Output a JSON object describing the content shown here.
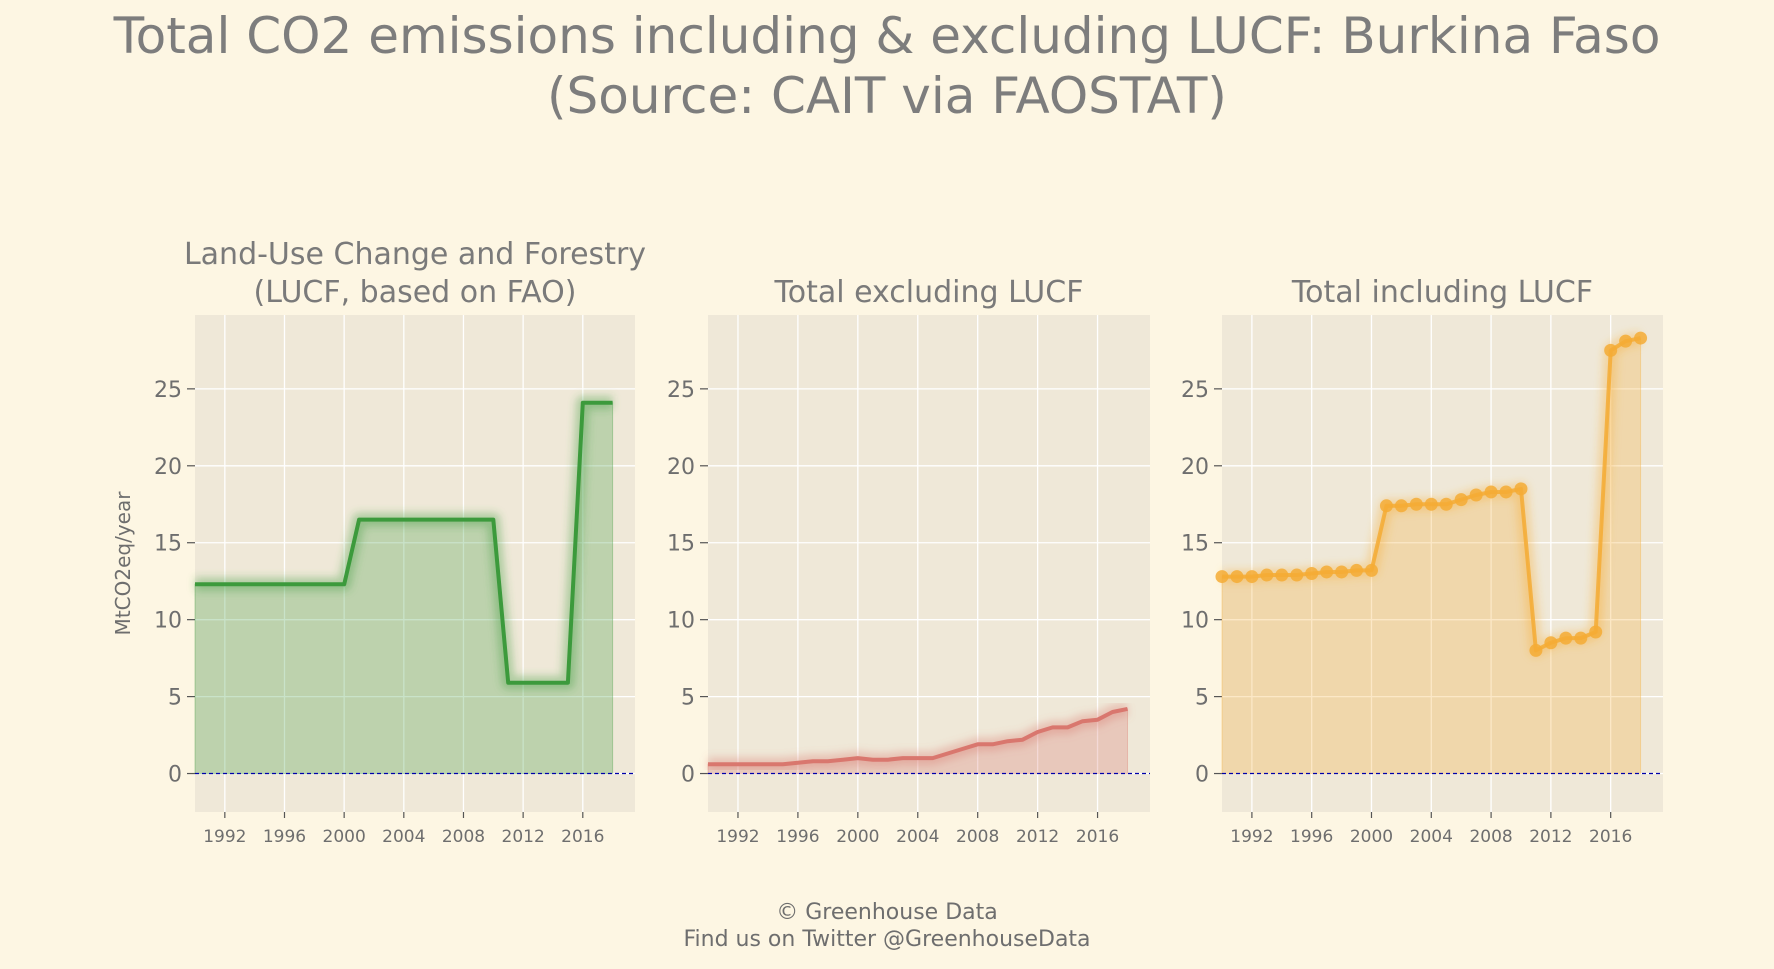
{
  "title": {
    "line1": "Total CO2 emissions including & excluding LUCF: Burkina Faso",
    "line2": "(Source: CAIT via FAOSTAT)"
  },
  "footer": {
    "line1": "© Greenhouse Data",
    "line2": "Find us on Twitter @GreenhouseData"
  },
  "colors": {
    "background": "#fdf6e3",
    "panel": "#efe8d8",
    "grid": "#ffffff",
    "lucf": "#3c9a3c",
    "excl": "#d9776e",
    "incl": "#f5ab35",
    "zero_line": "#0000aa"
  },
  "chart_data": [
    {
      "type": "area",
      "title": [
        "Land-Use Change and Forestry",
        "(LUCF, based on FAO)"
      ],
      "ylabel": "MtCO2eq/year",
      "xlim": [
        1990,
        2019.5
      ],
      "ylim": [
        -2.5,
        29.8
      ],
      "xticks": [
        1992,
        1996,
        2000,
        2004,
        2008,
        2012,
        2016
      ],
      "yticks": [
        0,
        5,
        10,
        15,
        20,
        25
      ],
      "grid": true,
      "markers": false,
      "color": "#3c9a3c",
      "x": [
        1990,
        1991,
        1992,
        1993,
        1994,
        1995,
        1996,
        1997,
        1998,
        1999,
        2000,
        2001,
        2002,
        2003,
        2004,
        2005,
        2006,
        2007,
        2008,
        2009,
        2010,
        2011,
        2012,
        2013,
        2014,
        2015,
        2016,
        2017,
        2018
      ],
      "y": [
        12.3,
        12.3,
        12.3,
        12.3,
        12.3,
        12.3,
        12.3,
        12.3,
        12.3,
        12.3,
        12.3,
        16.5,
        16.5,
        16.5,
        16.5,
        16.5,
        16.5,
        16.5,
        16.5,
        16.5,
        16.5,
        5.9,
        5.9,
        5.9,
        5.9,
        5.9,
        24.1,
        24.1,
        24.1
      ]
    },
    {
      "type": "area",
      "title": [
        "Total excluding LUCF"
      ],
      "ylabel": "",
      "xlim": [
        1990,
        2019.5
      ],
      "ylim": [
        -2.5,
        29.8
      ],
      "xticks": [
        1992,
        1996,
        2000,
        2004,
        2008,
        2012,
        2016
      ],
      "yticks": [
        0,
        5,
        10,
        15,
        20,
        25
      ],
      "grid": true,
      "markers": false,
      "color": "#d9776e",
      "x": [
        1990,
        1991,
        1992,
        1993,
        1994,
        1995,
        1996,
        1997,
        1998,
        1999,
        2000,
        2001,
        2002,
        2003,
        2004,
        2005,
        2006,
        2007,
        2008,
        2009,
        2010,
        2011,
        2012,
        2013,
        2014,
        2015,
        2016,
        2017,
        2018
      ],
      "y": [
        0.6,
        0.6,
        0.6,
        0.6,
        0.6,
        0.6,
        0.7,
        0.8,
        0.8,
        0.9,
        1.0,
        0.9,
        0.9,
        1.0,
        1.0,
        1.0,
        1.3,
        1.6,
        1.9,
        1.9,
        2.1,
        2.2,
        2.7,
        3.0,
        3.0,
        3.4,
        3.5,
        4.0,
        4.2
      ]
    },
    {
      "type": "area",
      "title": [
        "Total including LUCF"
      ],
      "ylabel": "",
      "xlim": [
        1990,
        2019.5
      ],
      "ylim": [
        -2.5,
        29.8
      ],
      "xticks": [
        1992,
        1996,
        2000,
        2004,
        2008,
        2012,
        2016
      ],
      "yticks": [
        0,
        5,
        10,
        15,
        20,
        25
      ],
      "grid": true,
      "markers": true,
      "color": "#f5ab35",
      "x": [
        1990,
        1991,
        1992,
        1993,
        1994,
        1995,
        1996,
        1997,
        1998,
        1999,
        2000,
        2001,
        2002,
        2003,
        2004,
        2005,
        2006,
        2007,
        2008,
        2009,
        2010,
        2011,
        2012,
        2013,
        2014,
        2015,
        2016,
        2017,
        2018
      ],
      "y": [
        12.8,
        12.8,
        12.8,
        12.9,
        12.9,
        12.9,
        13.0,
        13.1,
        13.1,
        13.2,
        13.2,
        17.4,
        17.4,
        17.5,
        17.5,
        17.5,
        17.8,
        18.1,
        18.3,
        18.3,
        18.5,
        8.0,
        8.5,
        8.8,
        8.8,
        9.2,
        27.5,
        28.1,
        28.3
      ]
    }
  ]
}
